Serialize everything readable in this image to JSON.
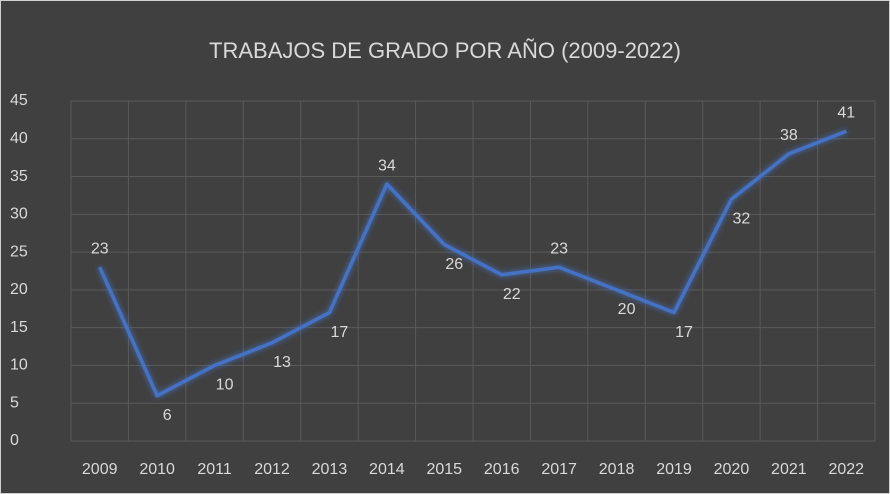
{
  "chart_data": {
    "type": "line",
    "title": "TRABAJOS DE GRADO POR AÑO (2009-2022)",
    "categories": [
      "2009",
      "2010",
      "2011",
      "2012",
      "2013",
      "2014",
      "2015",
      "2016",
      "2017",
      "2018",
      "2019",
      "2020",
      "2021",
      "2022"
    ],
    "values": [
      23,
      6,
      10,
      13,
      17,
      34,
      26,
      22,
      23,
      20,
      17,
      32,
      38,
      41
    ],
    "color": "#4472c4",
    "ylim": [
      0,
      45
    ],
    "yticks": [
      0,
      5,
      10,
      15,
      20,
      25,
      30,
      35,
      40,
      45
    ],
    "grid": true
  }
}
